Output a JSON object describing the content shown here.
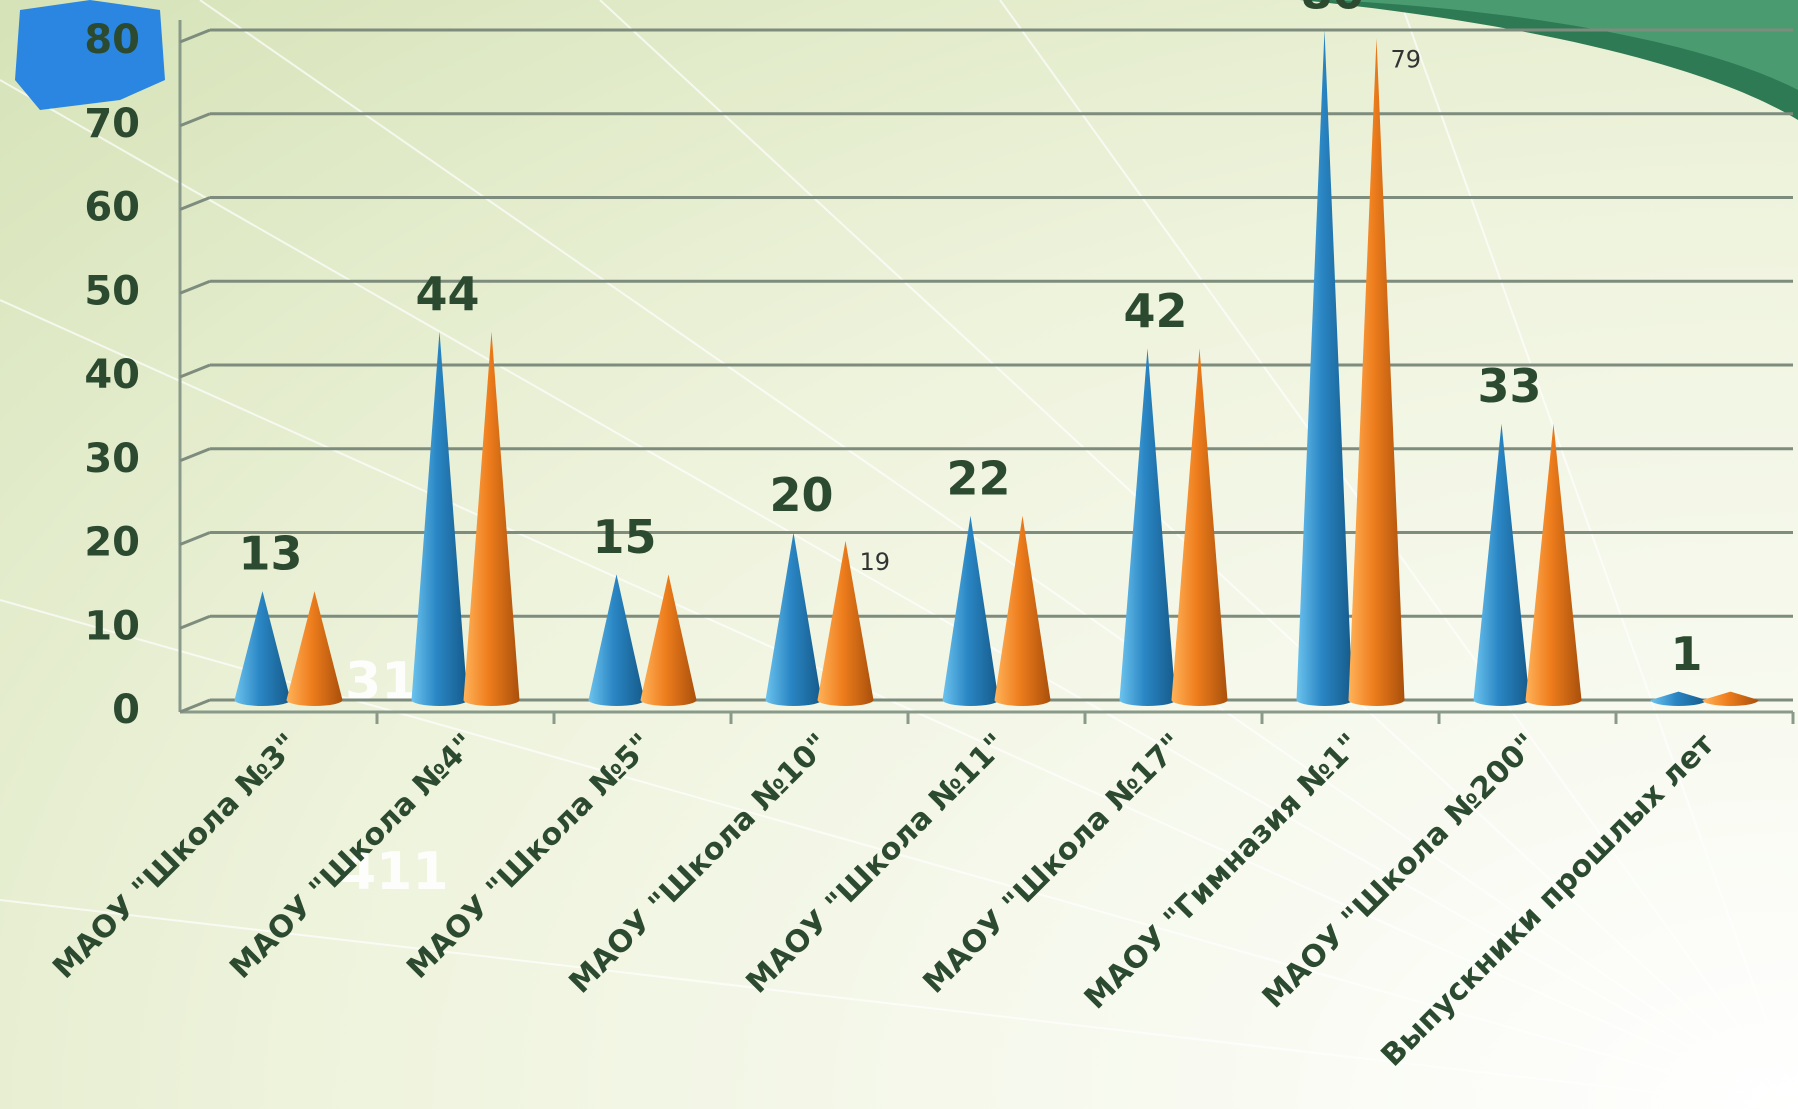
{
  "chart_data": {
    "type": "cone",
    "categories": [
      "МАОУ \"Школа №3\"",
      "МАОУ \"Школа №4\"",
      "МАОУ \"Школа №5\"",
      "МАОУ \"Школа №10\"",
      "МАОУ \"Школа №11\"",
      "МАОУ \"Школа №17\"",
      "МАОУ \"Гимназия №1\"",
      "МАОУ \"Школа №200\"",
      "Выпускники прошлых лет"
    ],
    "series": [
      {
        "color": "#2a86c4",
        "values": [
          13,
          44,
          15,
          20,
          22,
          42,
          80,
          33,
          1
        ]
      },
      {
        "color": "#ee7d1c",
        "values": [
          13,
          44,
          15,
          19,
          22,
          42,
          79,
          33,
          1
        ],
        "value_labels": [
          null,
          null,
          null,
          "19",
          null,
          null,
          "79",
          null,
          null
        ]
      }
    ],
    "ylim": [
      0,
      80
    ],
    "yticks": [
      0,
      10,
      20,
      30,
      40,
      50,
      60,
      70,
      80
    ],
    "grid": true,
    "annotations": [
      "31",
      "411"
    ]
  }
}
